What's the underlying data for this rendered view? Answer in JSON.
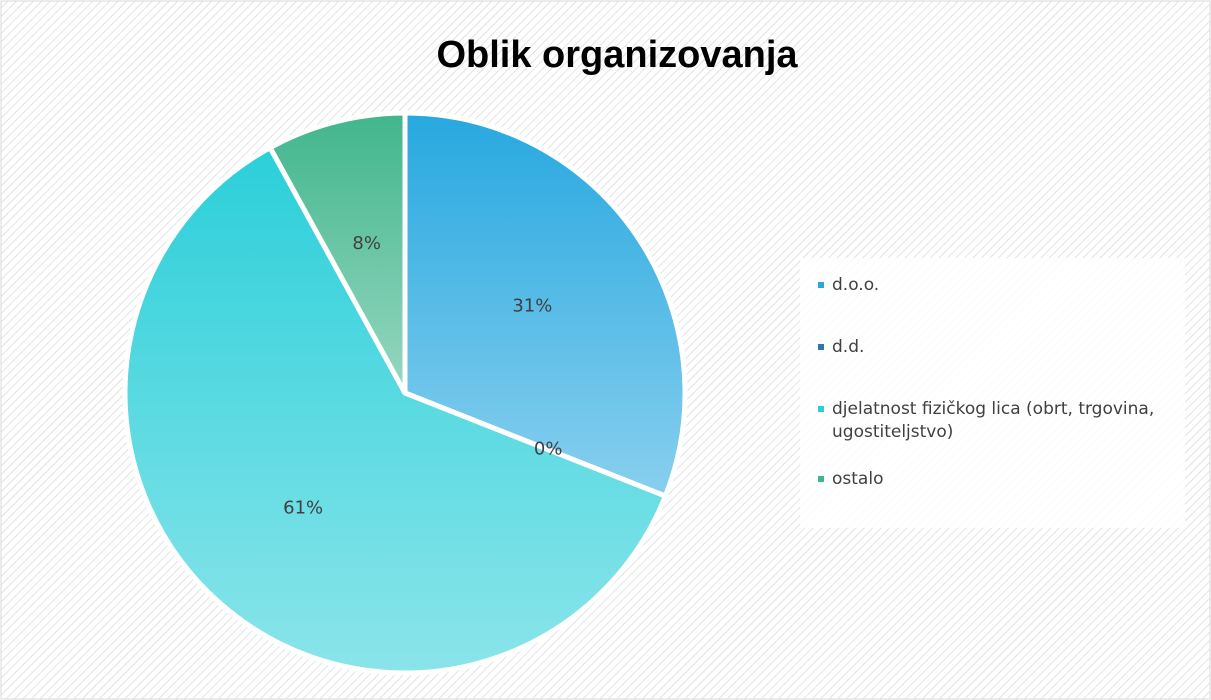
{
  "chart_data": {
    "type": "pie",
    "title": "Oblik organizovanja",
    "categories": [
      "d.o.o.",
      "d.d.",
      "djelatnost fizičkog lica (obrt, trgovina, ugostiteljstvo)",
      "ostalo"
    ],
    "values": [
      31,
      0,
      61,
      8
    ],
    "value_labels": [
      "31%",
      "0%",
      "61%",
      "8%"
    ],
    "colors": [
      "#27a8e0",
      "#2e75b6",
      "#2bcfd9",
      "#41b68d"
    ],
    "legend": "right"
  }
}
